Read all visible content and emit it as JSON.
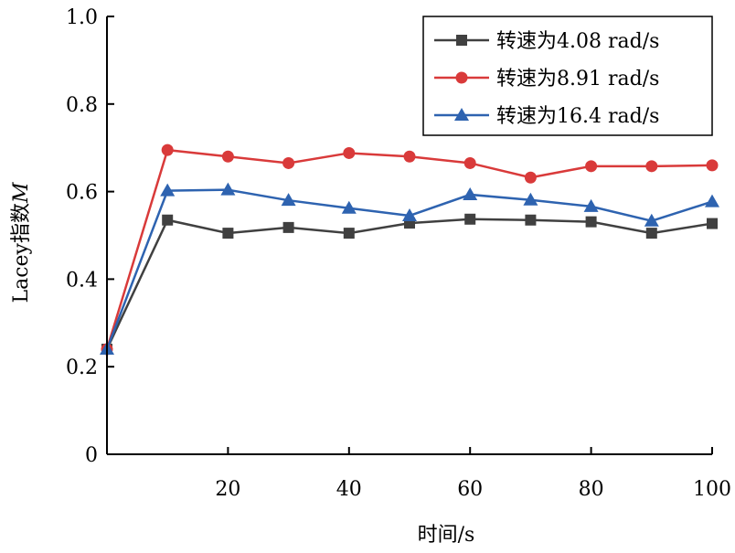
{
  "chart_data": {
    "type": "line",
    "title": "",
    "xlabel": "时间/s",
    "ylabel_prefix": "Lacey指数",
    "ylabel_symbol": "M",
    "xlim": [
      0,
      100
    ],
    "ylim": [
      0,
      1.0
    ],
    "xticks": [
      20,
      40,
      60,
      80,
      100
    ],
    "xtick_labels": [
      "20",
      "40",
      "60",
      "80",
      "100"
    ],
    "yticks": [
      0,
      0.2,
      0.4,
      0.6,
      0.8,
      1.0
    ],
    "ytick_labels": [
      "0",
      "0.2",
      "0.4",
      "0.6",
      "0.8",
      "1.0"
    ],
    "grid": false,
    "legend_position": "top-right",
    "x": [
      0,
      10,
      20,
      30,
      40,
      50,
      60,
      70,
      80,
      90,
      100
    ],
    "series": [
      {
        "name": "转速为4.08 rad/s",
        "marker": "square",
        "color": "#404040",
        "values": [
          0.24,
          0.535,
          0.505,
          0.518,
          0.505,
          0.528,
          0.537,
          0.535,
          0.531,
          0.505,
          0.527
        ]
      },
      {
        "name": "转速为8.91 rad/s",
        "marker": "circle",
        "color": "#d93a3a",
        "values": [
          0.24,
          0.695,
          0.68,
          0.665,
          0.688,
          0.68,
          0.665,
          0.632,
          0.658,
          0.658,
          0.66
        ]
      },
      {
        "name": "转速为16.4 rad/s",
        "marker": "triangle",
        "color": "#2e63b0",
        "values": [
          0.24,
          0.602,
          0.604,
          0.58,
          0.562,
          0.545,
          0.593,
          0.581,
          0.566,
          0.533,
          0.577
        ]
      }
    ]
  }
}
